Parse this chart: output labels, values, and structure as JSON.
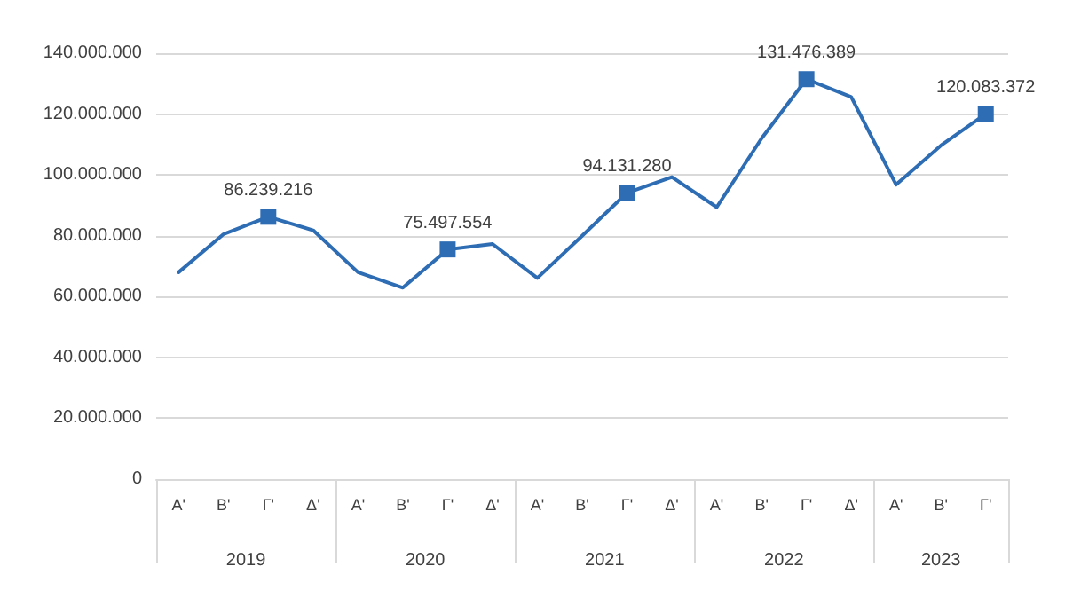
{
  "chart_data": {
    "type": "line",
    "categories": [
      "A'",
      "B'",
      "Γ'",
      "Δ'",
      "A'",
      "B'",
      "Γ'",
      "Δ'",
      "A'",
      "B'",
      "Γ'",
      "Δ'",
      "A'",
      "B'",
      "Γ'",
      "Δ'",
      "A'",
      "B'",
      "Γ'"
    ],
    "series": [
      {
        "color": "#2e6db4",
        "values": [
          68000000,
          80500000,
          86239216,
          81800000,
          68000000,
          62900000,
          75497554,
          77300000,
          66100000,
          80000000,
          94131280,
          99300000,
          89400000,
          112000000,
          131476389,
          125600000,
          96800000,
          109700000,
          120083372
        ],
        "value_labels": [
          null,
          null,
          "86.239.216",
          null,
          null,
          null,
          "75.497.554",
          null,
          null,
          null,
          "94.131.280",
          null,
          null,
          null,
          "131.476.389",
          null,
          null,
          null,
          "120.083.372"
        ]
      }
    ],
    "annotations": [
      "2019",
      "2020",
      "2021",
      "2022",
      "2023"
    ],
    "ylim": [
      0,
      140000000
    ],
    "yticks": [
      {
        "value": 0,
        "label": "0"
      },
      {
        "value": 20000000,
        "label": "20.000.000"
      },
      {
        "value": 40000000,
        "label": "40.000.000"
      },
      {
        "value": 60000000,
        "label": "60.000.000"
      },
      {
        "value": 80000000,
        "label": "80.000.000"
      },
      {
        "value": 100000000,
        "label": "100.000.000"
      },
      {
        "value": 120000000,
        "label": "120.000.000"
      },
      {
        "value": 140000000,
        "label": "140.000.000"
      }
    ],
    "grid": "y",
    "line_style": "solid"
  }
}
